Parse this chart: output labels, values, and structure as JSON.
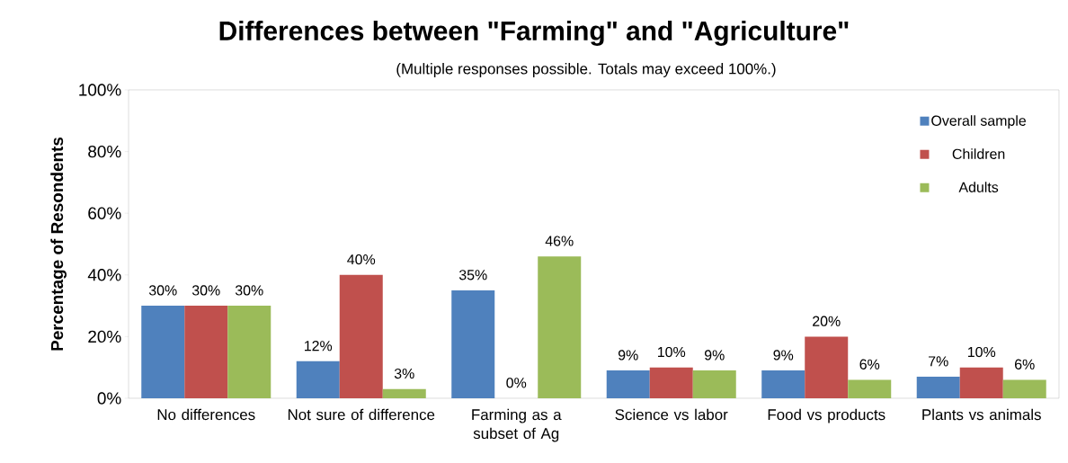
{
  "chart_data": {
    "type": "bar",
    "title": "Differences between \"Farming\" and \"Agriculture\"",
    "subtitle": "(Multiple responses possible. Totals may exceed 100%.)",
    "ylabel": "Percentage of Resondents",
    "categories": [
      "No differences",
      "Not sure of difference",
      "Farming as a subset of Ag",
      "Science vs labor",
      "Food vs products",
      "Plants vs animals"
    ],
    "series": [
      {
        "name": "Overall sample",
        "color": "#4f81bd",
        "values": [
          30,
          12,
          35,
          9,
          9,
          7
        ],
        "value_labels": [
          "30%",
          "12%",
          "35%",
          "9%",
          "9%",
          "7%"
        ]
      },
      {
        "name": "Children",
        "color": "#c0504d",
        "values": [
          30,
          40,
          0,
          10,
          20,
          10
        ],
        "value_labels": [
          "30%",
          "40%",
          "0%",
          "10%",
          "20%",
          "10%"
        ]
      },
      {
        "name": "Adults",
        "color": "#9bbb59",
        "values": [
          30,
          3,
          46,
          9,
          6,
          6
        ],
        "value_labels": [
          "30%",
          "3%",
          "46%",
          "9%",
          "6%",
          "6%"
        ]
      }
    ],
    "ylim": [
      0,
      100
    ],
    "yticks": [
      {
        "value": 0,
        "label": "0%"
      },
      {
        "value": 20,
        "label": "20%"
      },
      {
        "value": 40,
        "label": "40%"
      },
      {
        "value": 60,
        "label": "60%"
      },
      {
        "value": 80,
        "label": "80%"
      },
      {
        "value": 100,
        "label": "100%"
      }
    ],
    "legend": "top right",
    "grid": false
  }
}
